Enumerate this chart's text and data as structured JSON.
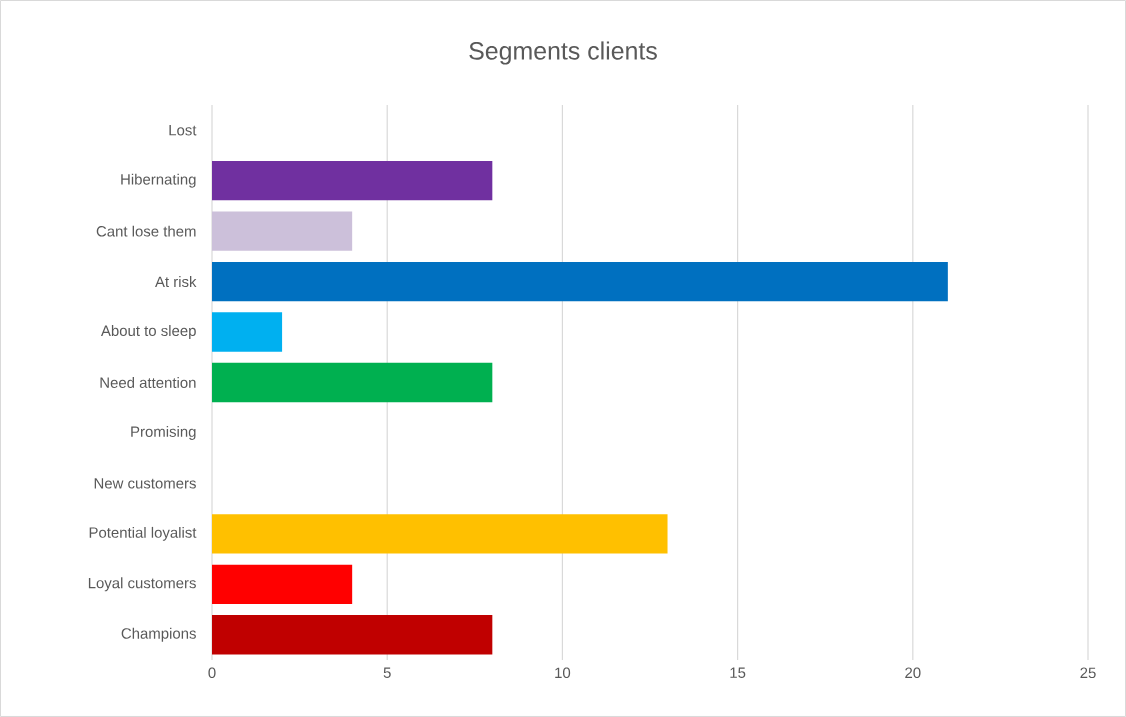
{
  "chart_data": {
    "type": "bar",
    "orientation": "horizontal",
    "title": "Segments clients",
    "categories": [
      "Lost",
      "Hibernating",
      "Cant lose them",
      "At risk",
      "About to sleep",
      "Need attention",
      "Promising",
      "New customers",
      "Potential loyalist",
      "Loyal customers",
      "Champions"
    ],
    "values": [
      0,
      8,
      4,
      21,
      2,
      8,
      0,
      0,
      13,
      4,
      8
    ],
    "colors": [
      null,
      "#7030a0",
      "#ccc0da",
      "#0070c0",
      "#00b0f0",
      "#00b050",
      null,
      null,
      "#ffc000",
      "#ff0000",
      "#c00000"
    ],
    "xlim": [
      0,
      25
    ],
    "xticks": [
      0,
      5,
      10,
      15,
      20,
      25
    ],
    "grid": "x"
  }
}
